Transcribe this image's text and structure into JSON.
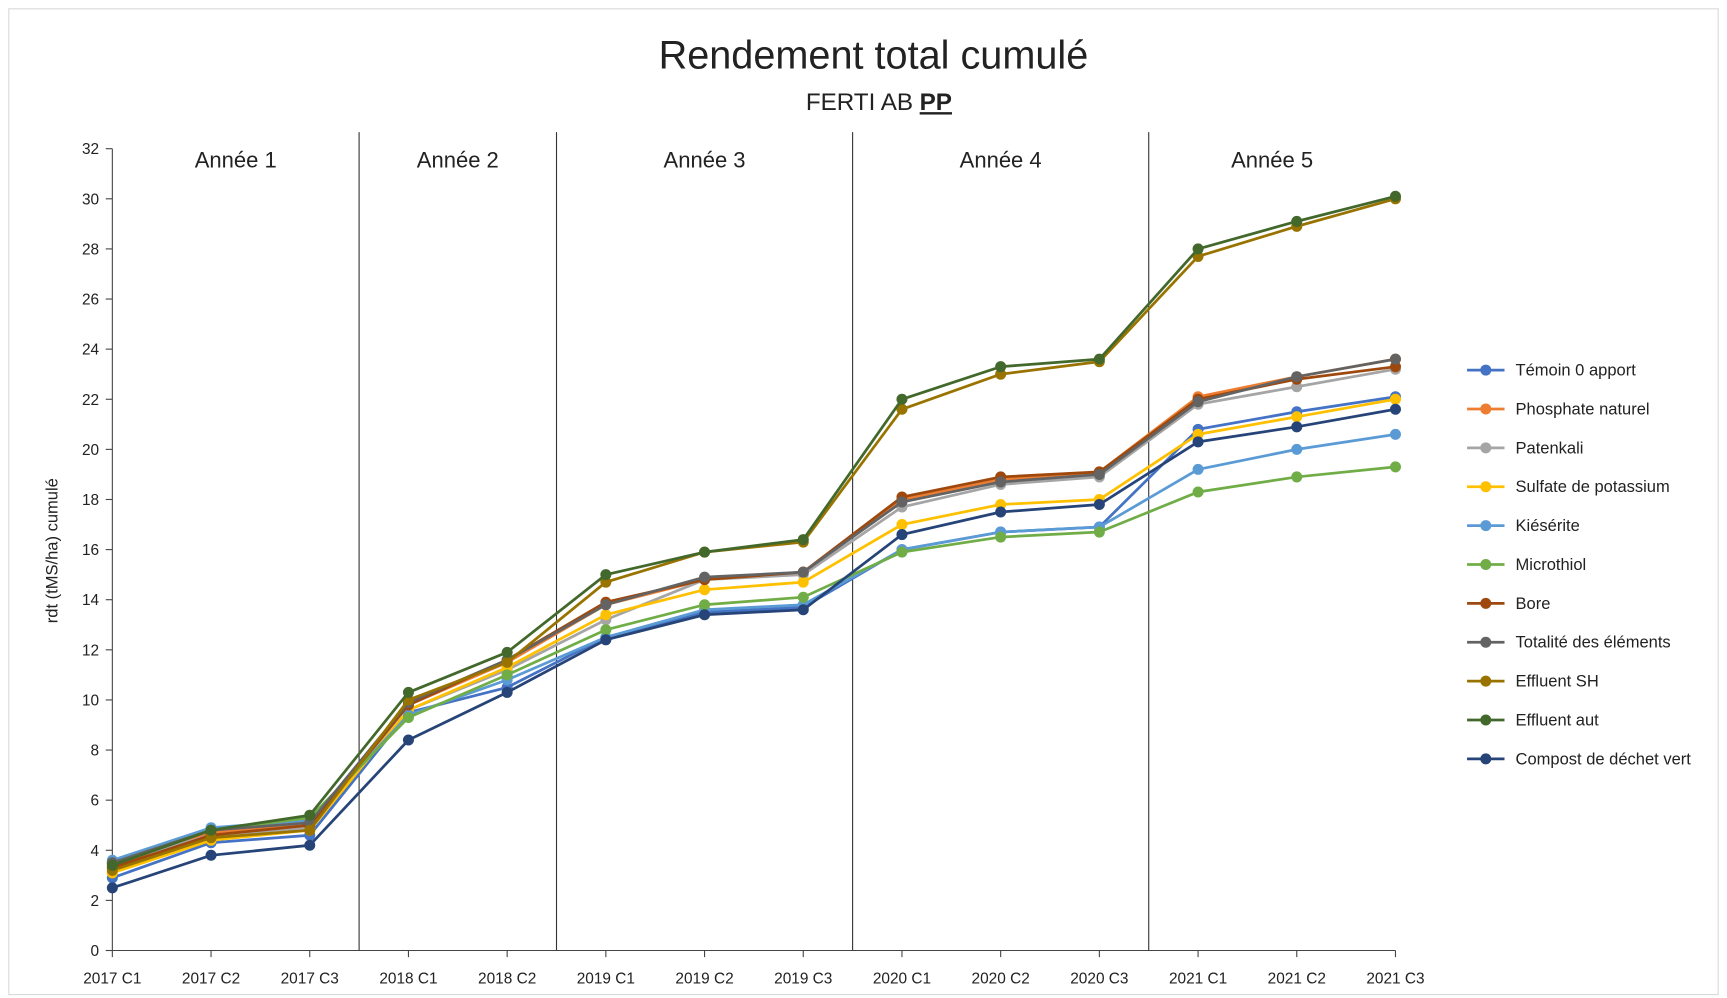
{
  "chart_data": {
    "type": "line",
    "title": "Rendement total cumulé",
    "subtitle": "FERTI AB",
    "subtitle_bold": "PP",
    "y_label": "rdt (tMS/ha) cumulé",
    "annotations": [
      "Année 1",
      "Année 2",
      "Année 3",
      "Année 4",
      "Année 5"
    ],
    "categories": [
      "2017 C1",
      "2017 C2",
      "2017 C3",
      "2018 C1",
      "2018 C2",
      "2019 C1",
      "2019 C2",
      "2019 C3",
      "2020 C1",
      "2020 C2",
      "2020 C3",
      "2021 C1",
      "2021 C2",
      "2021 C3"
    ],
    "ylim": [
      0,
      32
    ],
    "yticks": [
      0,
      2,
      4,
      6,
      8,
      10,
      12,
      14,
      16,
      18,
      20,
      22,
      24,
      26,
      28,
      30,
      32
    ],
    "legend": "right",
    "series": [
      {
        "name": "Témoin 0 apport",
        "color": "#4472c4",
        "values": [
          2.9,
          4.3,
          4.6,
          9.5,
          10.5,
          12.5,
          13.5,
          13.7,
          16.0,
          16.7,
          16.9,
          20.8,
          21.5,
          22.1
        ]
      },
      {
        "name": "Phosphate naturel",
        "color": "#ed7d31",
        "values": [
          3.3,
          4.7,
          5.0,
          9.8,
          11.5,
          13.8,
          14.8,
          15.1,
          18.0,
          18.8,
          19.1,
          22.1,
          22.9,
          23.6
        ]
      },
      {
        "name": "Patenkali",
        "color": "#a5a5a5",
        "values": [
          3.5,
          4.6,
          4.9,
          9.6,
          11.2,
          13.2,
          14.8,
          15.0,
          17.7,
          18.6,
          18.9,
          21.8,
          22.5,
          23.2
        ]
      },
      {
        "name": "Sulfate de potassium",
        "color": "#ffc000",
        "values": [
          3.1,
          4.4,
          4.8,
          9.6,
          11.3,
          13.4,
          14.4,
          14.7,
          17.0,
          17.8,
          18.0,
          20.6,
          21.3,
          22.0
        ]
      },
      {
        "name": "Kiésérite",
        "color": "#5b9bd5",
        "values": [
          3.6,
          4.9,
          5.2,
          9.4,
          10.8,
          12.5,
          13.6,
          13.8,
          16.0,
          16.7,
          16.9,
          19.2,
          20.0,
          20.6
        ]
      },
      {
        "name": "Microthiol",
        "color": "#70ad47",
        "values": [
          3.5,
          4.8,
          5.3,
          9.3,
          11.0,
          12.8,
          13.8,
          14.1,
          15.9,
          16.5,
          16.7,
          18.3,
          18.9,
          19.3
        ]
      },
      {
        "name": "Bore",
        "color": "#9e480e",
        "values": [
          3.3,
          4.6,
          5.0,
          9.8,
          11.6,
          13.9,
          14.8,
          15.1,
          18.1,
          18.9,
          19.1,
          22.0,
          22.8,
          23.3
        ]
      },
      {
        "name": "Totalité des éléments",
        "color": "#636363",
        "values": [
          3.5,
          4.8,
          5.1,
          9.9,
          11.6,
          13.8,
          14.9,
          15.1,
          17.9,
          18.7,
          19.0,
          21.9,
          22.9,
          23.6
        ]
      },
      {
        "name": "Effluent SH",
        "color": "#997300",
        "values": [
          3.2,
          4.5,
          4.8,
          10.0,
          11.5,
          14.7,
          15.9,
          16.3,
          21.6,
          23.0,
          23.5,
          27.7,
          28.9,
          30.0
        ]
      },
      {
        "name": "Effluent aut",
        "color": "#43682b",
        "values": [
          3.4,
          4.8,
          5.4,
          10.3,
          11.9,
          15.0,
          15.9,
          16.4,
          22.0,
          23.3,
          23.6,
          28.0,
          29.1,
          30.1
        ]
      },
      {
        "name": "Compost de déchet vert",
        "color": "#264478",
        "values": [
          2.5,
          3.8,
          4.2,
          8.4,
          10.3,
          12.4,
          13.4,
          13.6,
          16.6,
          17.5,
          17.8,
          20.3,
          20.9,
          21.6
        ]
      }
    ]
  }
}
